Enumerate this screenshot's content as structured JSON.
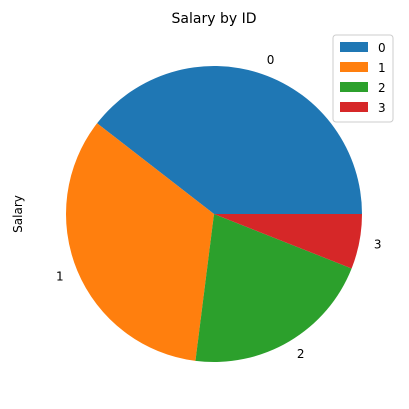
{
  "chart_data": {
    "type": "pie",
    "title": "Salary by ID",
    "ylabel": "Salary",
    "labels": [
      "0",
      "1",
      "2",
      "3"
    ],
    "values": [
      39.5,
      33.5,
      21.0,
      6.0
    ],
    "colors": [
      "#1f77b4",
      "#ff7f0e",
      "#2ca02c",
      "#d62728"
    ],
    "start_angle_deg": 0,
    "direction": "counterclockwise",
    "legend": {
      "placement": "top-right",
      "entries": [
        "0",
        "1",
        "2",
        "3"
      ]
    }
  }
}
